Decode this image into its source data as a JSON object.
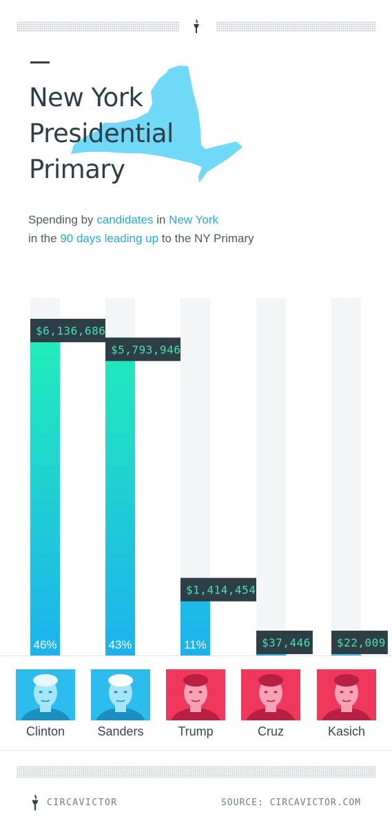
{
  "title": {
    "line1": "New York",
    "line2": "Presidential",
    "line3": "Primary"
  },
  "subtitle": {
    "p1": "Spending by ",
    "h1": "candidates",
    "p2": " in ",
    "h2": "New York",
    "p3": "in the ",
    "h3": "90 days leading up",
    "p4": " to the NY Primary"
  },
  "colors": {
    "dark": "#2d3e46",
    "blue": "#1fb3ea",
    "green": "#22edb7",
    "red": "#f0375c",
    "track": "#f4f5f6",
    "label_text": "#43e3b4"
  },
  "chart_data": {
    "type": "bar",
    "categories": [
      "Clinton",
      "Sanders",
      "Trump",
      "Cruz",
      "Kasich"
    ],
    "values": [
      6136686,
      5793946,
      1414454,
      37446,
      22009
    ],
    "value_labels": [
      "$6,136,686",
      "$5,793,946",
      "$1,414,454",
      "$37,446",
      "$22,009"
    ],
    "share_labels": [
      "46%",
      "43%",
      "11%",
      "",
      ""
    ],
    "ylim": [
      0,
      6500000
    ],
    "grid": false,
    "legend": "none"
  },
  "candidates": [
    {
      "name": "Clinton",
      "party": "dem",
      "icon": "clinton-photo"
    },
    {
      "name": "Sanders",
      "party": "dem",
      "icon": "sanders-photo"
    },
    {
      "name": "Trump",
      "party": "rep",
      "icon": "trump-photo"
    },
    {
      "name": "Cruz",
      "party": "rep",
      "icon": "cruz-photo"
    },
    {
      "name": "Kasich",
      "party": "rep",
      "icon": "kasich-photo"
    }
  ],
  "footer": {
    "brand": "CIRCAVICTOR",
    "source": "SOURCE: CIRCAVICTOR.COM"
  },
  "icons": {
    "header": "torch-icon",
    "footer": "torch-icon",
    "map": "new-york-state-map"
  }
}
